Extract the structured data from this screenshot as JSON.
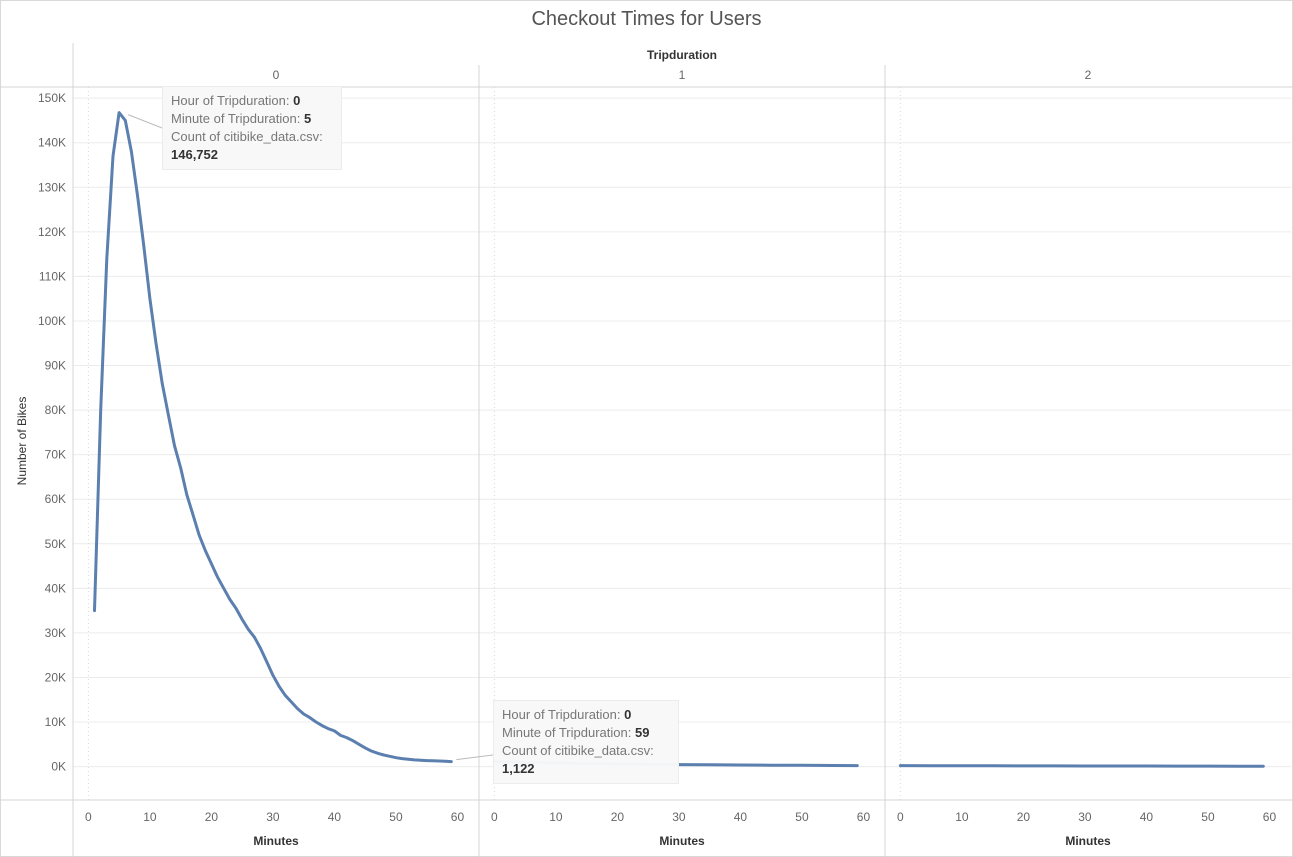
{
  "chart_data": {
    "type": "line",
    "title": "Checkout Times for Users",
    "column_header": "Tripduration",
    "panels": [
      "0",
      "1",
      "2"
    ],
    "xlabel": "Minutes",
    "ylabel": "Number of Bikes",
    "xlim": [
      -2.5,
      63.5
    ],
    "x_ticks": [
      "0",
      "10",
      "20",
      "30",
      "40",
      "50",
      "60"
    ],
    "x_tick_values": [
      0,
      10,
      20,
      30,
      40,
      50,
      60
    ],
    "ylim": [
      -7500,
      152500
    ],
    "y_ticks": [
      "0K",
      "10K",
      "20K",
      "30K",
      "40K",
      "50K",
      "60K",
      "70K",
      "80K",
      "90K",
      "100K",
      "110K",
      "120K",
      "130K",
      "140K",
      "150K"
    ],
    "y_tick_values": [
      0,
      10000,
      20000,
      30000,
      40000,
      50000,
      60000,
      70000,
      80000,
      90000,
      100000,
      110000,
      120000,
      130000,
      140000,
      150000
    ],
    "grid": true,
    "line_color": "#5b7fae",
    "series": [
      {
        "panel": "0",
        "x": [
          1,
          2,
          3,
          4,
          5,
          6,
          7,
          8,
          9,
          10,
          11,
          12,
          13,
          14,
          15,
          16,
          17,
          18,
          19,
          20,
          21,
          22,
          23,
          24,
          25,
          26,
          27,
          28,
          29,
          30,
          31,
          32,
          33,
          34,
          35,
          36,
          37,
          38,
          39,
          40,
          41,
          42,
          43,
          44,
          45,
          46,
          47,
          48,
          49,
          50,
          51,
          52,
          53,
          54,
          55,
          56,
          57,
          58,
          59
        ],
        "values": [
          35000,
          80000,
          114000,
          137000,
          146752,
          145000,
          138000,
          128000,
          117000,
          105000,
          95000,
          86000,
          79000,
          72000,
          67000,
          61000,
          56500,
          52000,
          48500,
          45500,
          42500,
          40000,
          37500,
          35500,
          33000,
          30800,
          29000,
          26500,
          23500,
          20500,
          18000,
          16000,
          14500,
          13000,
          11800,
          11000,
          10000,
          9200,
          8500,
          8000,
          7000,
          6500,
          5800,
          5000,
          4200,
          3500,
          3000,
          2600,
          2300,
          2000,
          1800,
          1650,
          1500,
          1400,
          1350,
          1300,
          1250,
          1180,
          1122
        ]
      },
      {
        "panel": "1",
        "x": [
          0,
          5,
          10,
          15,
          20,
          25,
          30,
          35,
          40,
          45,
          50,
          55,
          59
        ],
        "values": [
          1100,
          950,
          820,
          700,
          600,
          520,
          450,
          400,
          350,
          310,
          280,
          250,
          230
        ]
      },
      {
        "panel": "2",
        "x": [
          0,
          5,
          10,
          15,
          20,
          25,
          30,
          35,
          40,
          45,
          50,
          55,
          59
        ],
        "values": [
          220,
          200,
          180,
          170,
          160,
          150,
          140,
          130,
          120,
          110,
          100,
          95,
          90
        ]
      }
    ]
  },
  "tooltips": [
    {
      "hour_label": "Hour of Tripduration:",
      "hour_value": "0",
      "minute_label": "Minute of Tripduration:",
      "minute_value": "5",
      "count_label": "Count of citibike_data.csv:",
      "count_value": "146,752"
    },
    {
      "hour_label": "Hour of Tripduration:",
      "hour_value": "0",
      "minute_label": "Minute of Tripduration:",
      "minute_value": "59",
      "count_label": "Count of citibike_data.csv:",
      "count_value": "1,122"
    }
  ]
}
